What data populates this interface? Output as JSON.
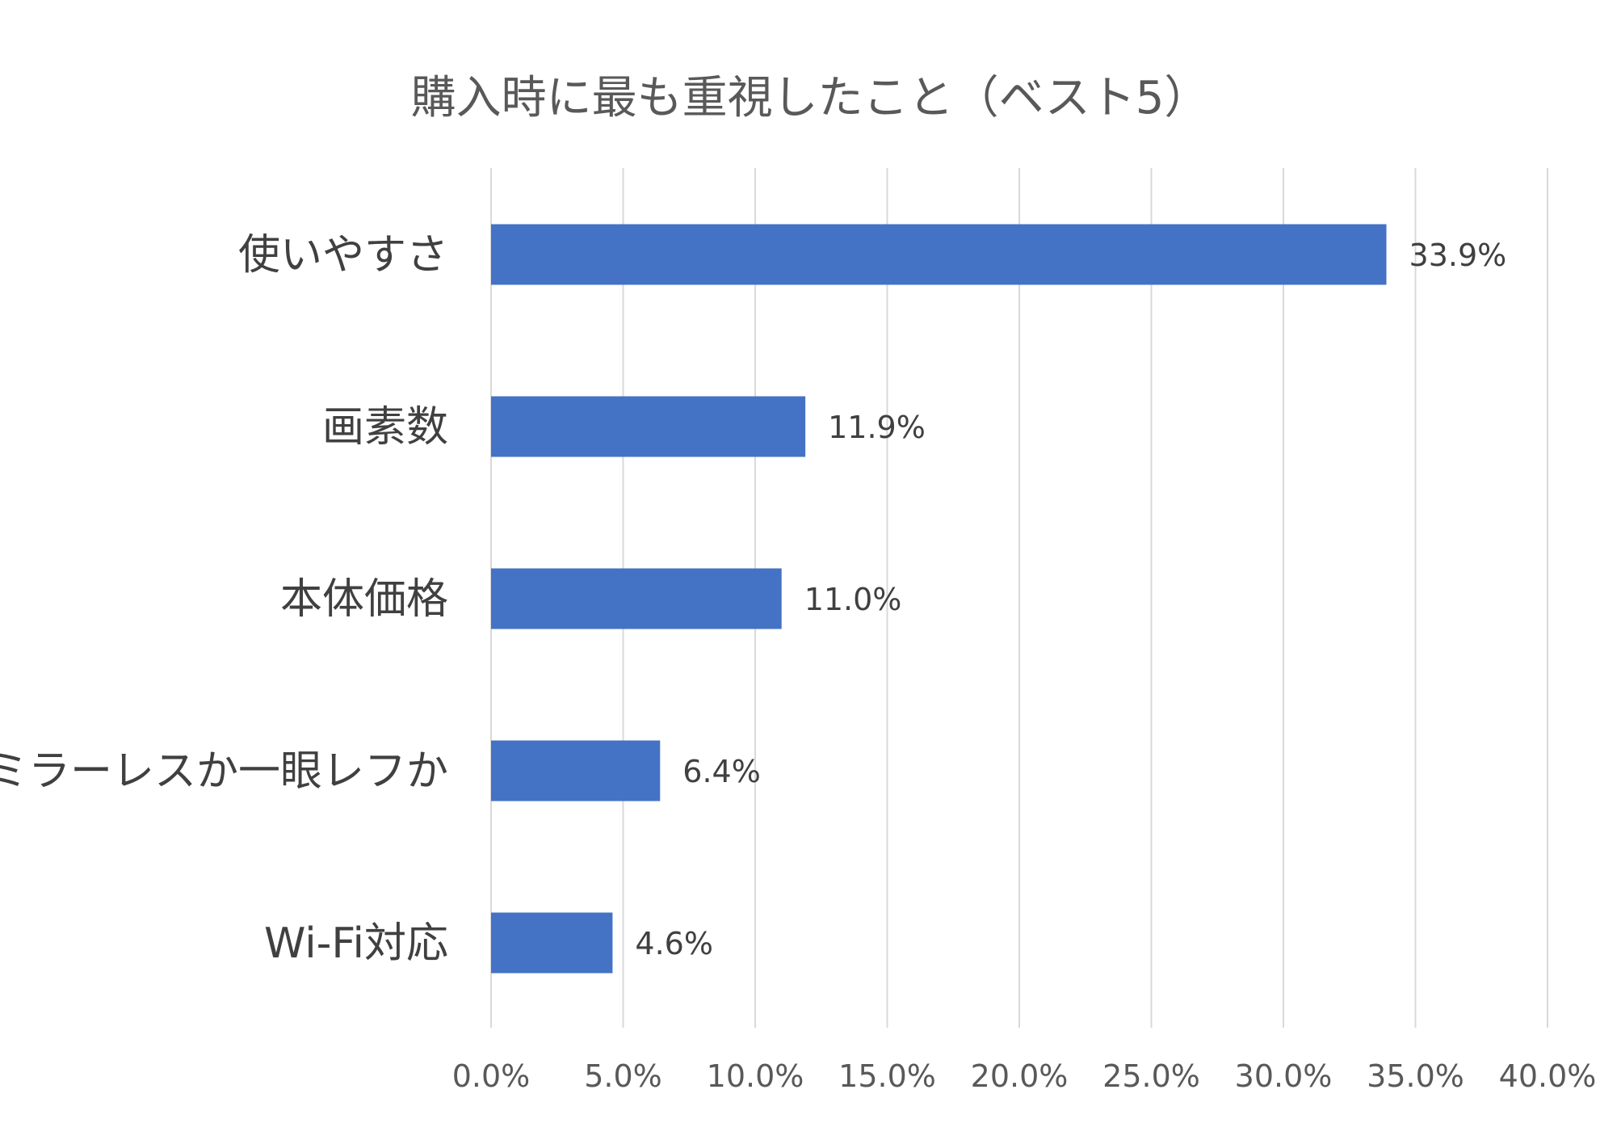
{
  "chart_data": {
    "type": "bar",
    "orientation": "horizontal",
    "title": "購入時に最も重視したこと（ベスト5）",
    "categories": [
      "使いやすさ",
      "画素数",
      "本体価格",
      "ミラーレスか一眼レフか",
      "Wi-Fi対応"
    ],
    "values": [
      33.9,
      11.9,
      11.0,
      6.4,
      4.6
    ],
    "value_labels": [
      "33.9%",
      "11.9%",
      "11.0%",
      "6.4%",
      "4.6%"
    ],
    "xlim": [
      0,
      40
    ],
    "x_ticks": [
      0,
      5,
      10,
      15,
      20,
      25,
      30,
      35,
      40
    ],
    "x_tick_labels": [
      "0.0%",
      "5.0%",
      "10.0%",
      "15.0%",
      "20.0%",
      "25.0%",
      "30.0%",
      "35.0%",
      "40.0%"
    ],
    "grid": true,
    "bar_color": "#4472c4",
    "xlabel": "",
    "ylabel": ""
  }
}
